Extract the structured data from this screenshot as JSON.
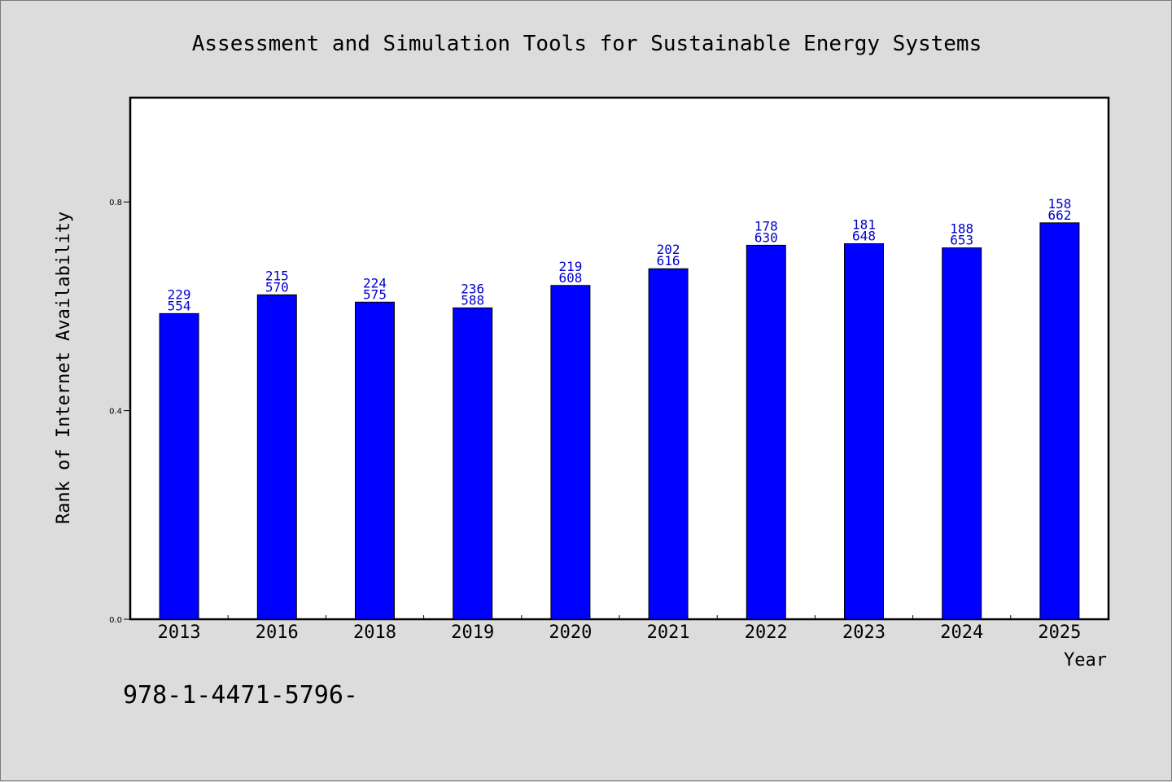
{
  "chart_data": {
    "type": "bar",
    "title": "Assessment and Simulation Tools for Sustainable Energy Systems",
    "xlabel": "Year",
    "ylabel": "Rank of Internet Availability",
    "categories": [
      "2013",
      "2016",
      "2018",
      "2019",
      "2020",
      "2021",
      "2022",
      "2023",
      "2024",
      "2025"
    ],
    "values": [
      0.586,
      0.622,
      0.608,
      0.597,
      0.64,
      0.672,
      0.717,
      0.72,
      0.712,
      0.76
    ],
    "labels_top": [
      "229",
      "215",
      "224",
      "236",
      "219",
      "202",
      "178",
      "181",
      "188",
      "158"
    ],
    "labels_bottom": [
      "554",
      "570",
      "575",
      "588",
      "608",
      "616",
      "630",
      "648",
      "653",
      "662"
    ],
    "ylim": [
      0,
      1.0
    ],
    "yticks": [
      0.0,
      0.4,
      0.8
    ],
    "ytick_labels": [
      "0.0",
      "0.4",
      "0.8"
    ],
    "grid": false,
    "bar_color": "#0000ff",
    "label_color": "#0000cc"
  },
  "footer": {
    "text": "978-1-4471-5796-"
  }
}
